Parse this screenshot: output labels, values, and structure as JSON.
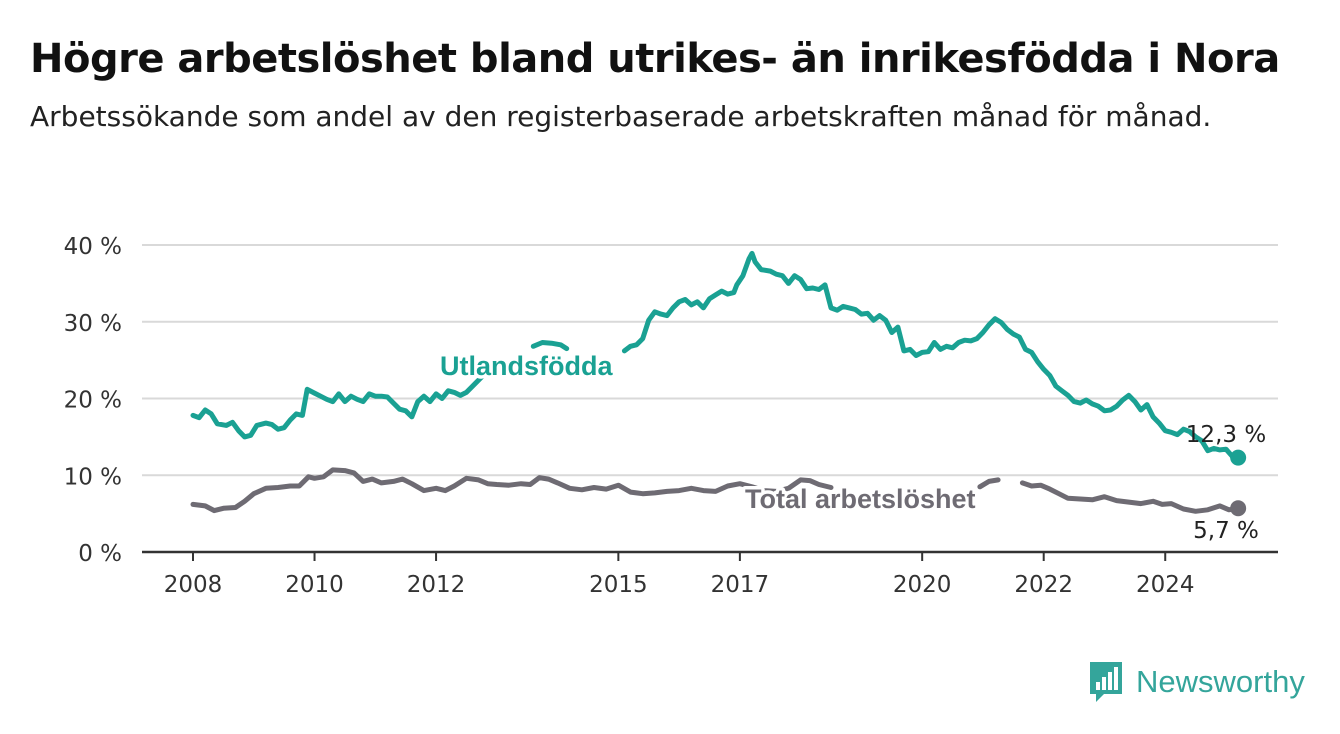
{
  "title": "Högre arbetslöshet bland utrikes- än inrikesfödda i Nora",
  "subtitle": "Arbetssökande som andel av den registerbaserade arbetskraften månad för månad.",
  "brand": {
    "name": "Newsworthy",
    "icon": "bar-chart-logo-icon",
    "color": "#34a59b"
  },
  "chart_data": {
    "type": "line",
    "title": "Högre arbetslöshet bland utrikes- än inrikesfödda i Nora",
    "subtitle": "Arbetssökande som andel av den registerbaserade arbetskraften månad för månad.",
    "xlabel": "",
    "ylabel": "",
    "xlim": [
      2008,
      2025
    ],
    "ylim": [
      0,
      40
    ],
    "grid": true,
    "x_ticks": [
      2008,
      2010,
      2012,
      2015,
      2017,
      2020,
      2022,
      2024
    ],
    "x_tick_labels": [
      "2008",
      "2010",
      "2012",
      "2015",
      "2017",
      "2020",
      "2022",
      "2024"
    ],
    "y_ticks": [
      0,
      10,
      20,
      30,
      40
    ],
    "y_tick_labels": [
      "0 %",
      "10 %",
      "20 %",
      "30 %",
      "40 %"
    ],
    "series": [
      {
        "name": "Utlandsfödda",
        "color": "#1aa193",
        "end_label": "12,3 %",
        "points": [
          [
            2008.0,
            17.8
          ],
          [
            2008.1,
            17.5
          ],
          [
            2008.2,
            18.5
          ],
          [
            2008.3,
            18.0
          ],
          [
            2008.4,
            16.7
          ],
          [
            2008.55,
            16.5
          ],
          [
            2008.65,
            16.9
          ],
          [
            2008.75,
            15.8
          ],
          [
            2008.85,
            15.0
          ],
          [
            2008.95,
            15.2
          ],
          [
            2009.05,
            16.5
          ],
          [
            2009.2,
            16.8
          ],
          [
            2009.3,
            16.6
          ],
          [
            2009.4,
            16.0
          ],
          [
            2009.5,
            16.2
          ],
          [
            2009.6,
            17.2
          ],
          [
            2009.7,
            18.0
          ],
          [
            2009.8,
            17.8
          ],
          [
            2009.88,
            21.2
          ],
          [
            2010.0,
            20.7
          ],
          [
            2010.1,
            20.3
          ],
          [
            2010.2,
            19.9
          ],
          [
            2010.3,
            19.6
          ],
          [
            2010.4,
            20.6
          ],
          [
            2010.5,
            19.6
          ],
          [
            2010.6,
            20.3
          ],
          [
            2010.7,
            19.9
          ],
          [
            2010.8,
            19.6
          ],
          [
            2010.9,
            20.6
          ],
          [
            2011.0,
            20.3
          ],
          [
            2011.1,
            20.3
          ],
          [
            2011.2,
            20.2
          ],
          [
            2011.3,
            19.4
          ],
          [
            2011.4,
            18.6
          ],
          [
            2011.5,
            18.4
          ],
          [
            2011.6,
            17.6
          ],
          [
            2011.7,
            19.6
          ],
          [
            2011.8,
            20.3
          ],
          [
            2011.9,
            19.6
          ],
          [
            2012.0,
            20.6
          ],
          [
            2012.1,
            20.0
          ],
          [
            2012.2,
            21.0
          ],
          [
            2012.3,
            20.8
          ],
          [
            2012.4,
            20.4
          ],
          [
            2012.5,
            20.8
          ],
          [
            2012.6,
            21.6
          ],
          [
            2012.7,
            22.4
          ],
          [
            2012.8,
            23.2
          ],
          null,
          [
            2013.6,
            26.8
          ],
          [
            2013.75,
            27.3
          ],
          [
            2013.9,
            27.2
          ],
          [
            2014.05,
            27.0
          ],
          [
            2014.15,
            26.5
          ],
          null,
          [
            2015.1,
            26.2
          ],
          [
            2015.2,
            26.8
          ],
          [
            2015.3,
            27.0
          ],
          [
            2015.4,
            27.8
          ],
          [
            2015.5,
            30.2
          ],
          [
            2015.6,
            31.3
          ],
          [
            2015.7,
            31.0
          ],
          [
            2015.8,
            30.8
          ],
          [
            2015.9,
            31.8
          ],
          [
            2016.0,
            32.6
          ],
          [
            2016.1,
            32.9
          ],
          [
            2016.2,
            32.2
          ],
          [
            2016.3,
            32.6
          ],
          [
            2016.4,
            31.8
          ],
          [
            2016.5,
            33.0
          ],
          [
            2016.6,
            33.5
          ],
          [
            2016.7,
            34.0
          ],
          [
            2016.8,
            33.6
          ],
          [
            2016.9,
            33.8
          ],
          [
            2016.95,
            34.8
          ],
          [
            2017.05,
            36.0
          ],
          [
            2017.15,
            38.2
          ],
          [
            2017.2,
            38.9
          ],
          [
            2017.25,
            37.8
          ],
          [
            2017.35,
            36.8
          ],
          [
            2017.5,
            36.6
          ],
          [
            2017.6,
            36.2
          ],
          [
            2017.7,
            36.0
          ],
          [
            2017.8,
            35.0
          ],
          [
            2017.9,
            36.0
          ],
          [
            2018.0,
            35.5
          ],
          [
            2018.1,
            34.3
          ],
          [
            2018.2,
            34.4
          ],
          [
            2018.3,
            34.2
          ],
          [
            2018.4,
            34.8
          ],
          [
            2018.5,
            31.8
          ],
          [
            2018.6,
            31.5
          ],
          [
            2018.7,
            32.0
          ],
          [
            2018.8,
            31.8
          ],
          [
            2018.9,
            31.6
          ],
          [
            2019.0,
            31.0
          ],
          [
            2019.1,
            31.1
          ],
          [
            2019.2,
            30.2
          ],
          [
            2019.3,
            30.8
          ],
          [
            2019.4,
            30.2
          ],
          [
            2019.5,
            28.6
          ],
          [
            2019.6,
            29.3
          ],
          [
            2019.7,
            26.2
          ],
          [
            2019.8,
            26.4
          ],
          [
            2019.9,
            25.6
          ],
          [
            2020.0,
            26.0
          ],
          [
            2020.1,
            26.1
          ],
          [
            2020.2,
            27.3
          ],
          [
            2020.3,
            26.4
          ],
          [
            2020.4,
            26.8
          ],
          [
            2020.5,
            26.6
          ],
          [
            2020.6,
            27.3
          ],
          [
            2020.7,
            27.6
          ],
          [
            2020.8,
            27.5
          ],
          [
            2020.9,
            27.8
          ],
          [
            2021.0,
            28.6
          ],
          [
            2021.1,
            29.6
          ],
          [
            2021.2,
            30.4
          ],
          [
            2021.3,
            29.9
          ],
          [
            2021.4,
            29.0
          ],
          [
            2021.5,
            28.4
          ],
          [
            2021.6,
            28.0
          ],
          [
            2021.7,
            26.4
          ],
          [
            2021.8,
            26.0
          ],
          [
            2021.9,
            24.8
          ],
          [
            2022.0,
            23.8
          ],
          [
            2022.1,
            23.0
          ],
          [
            2022.2,
            21.6
          ],
          [
            2022.3,
            21.0
          ],
          [
            2022.4,
            20.4
          ],
          [
            2022.5,
            19.6
          ],
          [
            2022.6,
            19.4
          ],
          [
            2022.7,
            19.8
          ],
          [
            2022.8,
            19.3
          ],
          [
            2022.9,
            19.0
          ],
          [
            2023.0,
            18.4
          ],
          [
            2023.1,
            18.5
          ],
          [
            2023.2,
            19.0
          ],
          [
            2023.3,
            19.8
          ],
          [
            2023.4,
            20.4
          ],
          [
            2023.5,
            19.6
          ],
          [
            2023.6,
            18.5
          ],
          [
            2023.7,
            19.2
          ],
          [
            2023.8,
            17.6
          ],
          [
            2023.9,
            16.8
          ],
          [
            2024.0,
            15.8
          ],
          [
            2024.1,
            15.6
          ],
          [
            2024.2,
            15.3
          ],
          [
            2024.3,
            16.0
          ],
          [
            2024.4,
            15.7
          ],
          [
            2024.5,
            15.0
          ],
          [
            2024.6,
            14.5
          ],
          [
            2024.7,
            13.2
          ],
          [
            2024.8,
            13.5
          ],
          [
            2024.9,
            13.3
          ],
          [
            2025.0,
            13.4
          ],
          [
            2025.1,
            12.5
          ],
          [
            2025.2,
            12.3
          ]
        ]
      },
      {
        "name": "Total arbetslöshet",
        "color": "#6e6b73",
        "end_label": "5,7 %",
        "points": [
          [
            2008.0,
            6.2
          ],
          [
            2008.2,
            6.0
          ],
          [
            2008.35,
            5.4
          ],
          [
            2008.5,
            5.7
          ],
          [
            2008.7,
            5.8
          ],
          [
            2008.85,
            6.6
          ],
          [
            2009.0,
            7.6
          ],
          [
            2009.2,
            8.3
          ],
          [
            2009.4,
            8.4
          ],
          [
            2009.6,
            8.6
          ],
          [
            2009.75,
            8.6
          ],
          [
            2009.9,
            9.8
          ],
          [
            2010.0,
            9.6
          ],
          [
            2010.15,
            9.8
          ],
          [
            2010.3,
            10.7
          ],
          [
            2010.5,
            10.6
          ],
          [
            2010.65,
            10.3
          ],
          [
            2010.8,
            9.2
          ],
          [
            2010.95,
            9.5
          ],
          [
            2011.1,
            9.0
          ],
          [
            2011.3,
            9.2
          ],
          [
            2011.45,
            9.5
          ],
          [
            2011.6,
            8.9
          ],
          [
            2011.8,
            8.0
          ],
          [
            2012.0,
            8.3
          ],
          [
            2012.15,
            8.0
          ],
          [
            2012.3,
            8.6
          ],
          [
            2012.5,
            9.6
          ],
          [
            2012.7,
            9.4
          ],
          [
            2012.85,
            8.9
          ],
          [
            2013.0,
            8.8
          ],
          [
            2013.2,
            8.7
          ],
          [
            2013.4,
            8.9
          ],
          [
            2013.55,
            8.8
          ],
          [
            2013.7,
            9.7
          ],
          [
            2013.85,
            9.5
          ],
          [
            2014.0,
            9.0
          ],
          [
            2014.2,
            8.3
          ],
          [
            2014.4,
            8.1
          ],
          [
            2014.6,
            8.4
          ],
          [
            2014.8,
            8.2
          ],
          [
            2015.0,
            8.7
          ],
          [
            2015.2,
            7.8
          ],
          [
            2015.4,
            7.6
          ],
          [
            2015.6,
            7.7
          ],
          [
            2015.8,
            7.9
          ],
          [
            2016.0,
            8.0
          ],
          [
            2016.2,
            8.3
          ],
          [
            2016.4,
            8.0
          ],
          [
            2016.6,
            7.9
          ],
          [
            2016.8,
            8.6
          ],
          [
            2017.0,
            8.9
          ],
          [
            2017.2,
            8.5
          ],
          [
            2017.4,
            8.0
          ],
          [
            2017.6,
            7.9
          ],
          [
            2017.8,
            8.3
          ],
          [
            2018.0,
            9.4
          ],
          [
            2018.15,
            9.3
          ],
          [
            2018.3,
            8.8
          ],
          [
            2018.5,
            8.4
          ],
          null,
          [
            2020.95,
            8.5
          ],
          [
            2021.1,
            9.2
          ],
          [
            2021.25,
            9.4
          ],
          null,
          [
            2021.65,
            9.0
          ],
          [
            2021.8,
            8.6
          ],
          [
            2021.95,
            8.7
          ],
          [
            2022.1,
            8.2
          ],
          [
            2022.25,
            7.6
          ],
          [
            2022.4,
            7.0
          ],
          [
            2022.6,
            6.9
          ],
          [
            2022.8,
            6.8
          ],
          [
            2023.0,
            7.2
          ],
          [
            2023.2,
            6.7
          ],
          [
            2023.4,
            6.5
          ],
          [
            2023.6,
            6.3
          ],
          [
            2023.8,
            6.6
          ],
          [
            2023.95,
            6.2
          ],
          [
            2024.1,
            6.3
          ],
          [
            2024.3,
            5.6
          ],
          [
            2024.5,
            5.3
          ],
          [
            2024.7,
            5.5
          ],
          [
            2024.9,
            6.0
          ],
          [
            2025.05,
            5.5
          ],
          [
            2025.2,
            5.7
          ]
        ]
      }
    ]
  }
}
